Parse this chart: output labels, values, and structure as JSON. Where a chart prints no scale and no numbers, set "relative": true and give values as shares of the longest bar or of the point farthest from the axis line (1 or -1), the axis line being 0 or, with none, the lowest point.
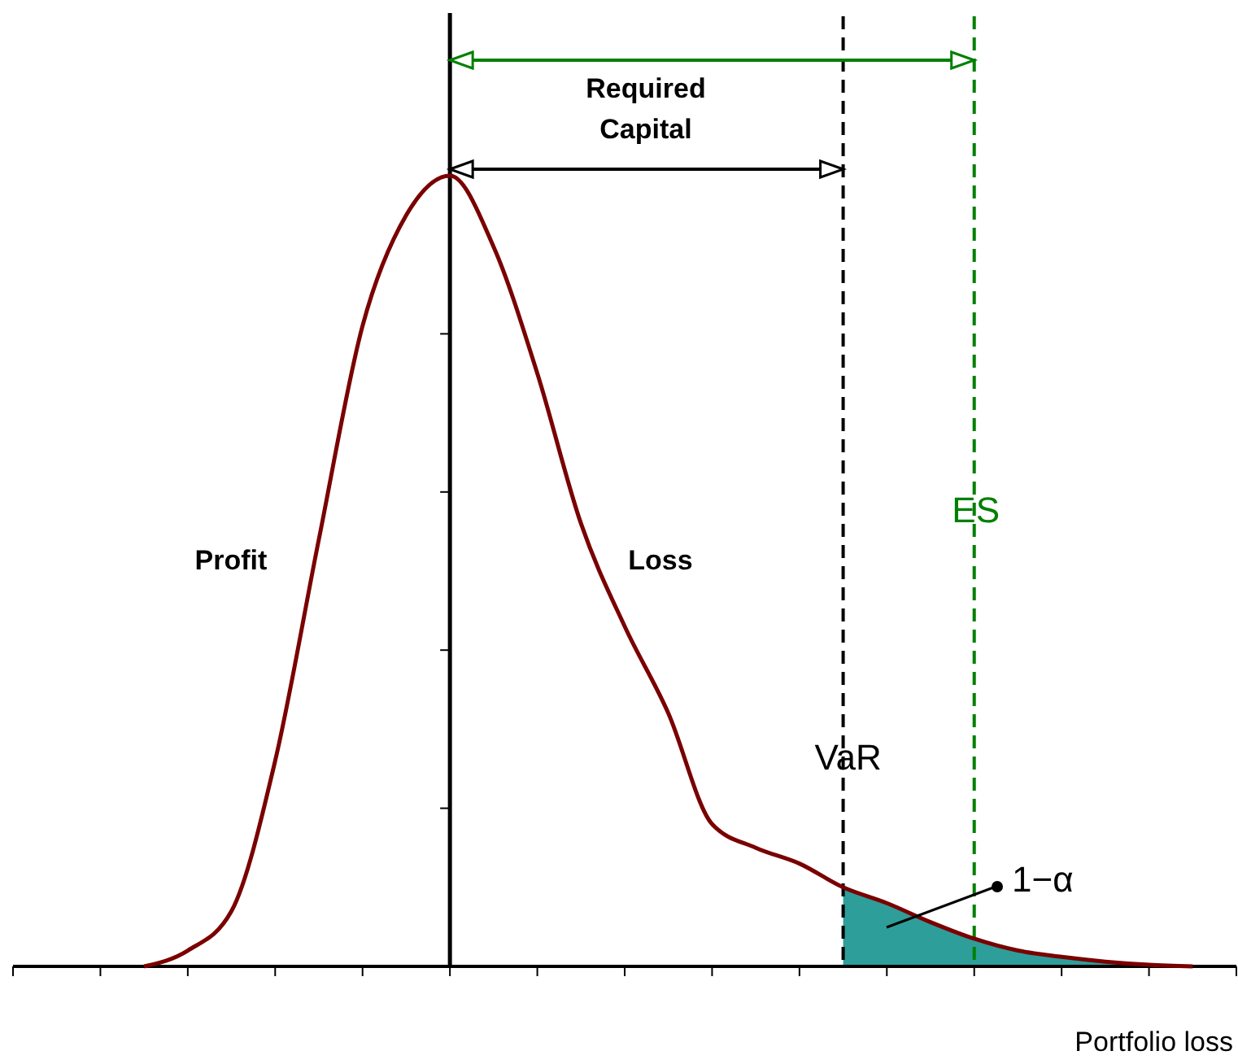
{
  "chart_data": {
    "type": "line",
    "relative": true,
    "xlabel": "Portfolio loss",
    "categories": [
      null,
      null,
      null,
      null,
      null,
      null,
      null,
      null,
      null,
      null,
      null,
      null,
      null,
      null,
      null,
      null,
      null,
      null,
      null,
      null,
      null,
      null,
      null,
      null,
      null,
      null,
      null,
      null,
      null
    ],
    "series": [
      {
        "color": "#7a0000",
        "values": [
          null,
          null,
          null,
          0,
          0.02,
          0.07,
          0.26,
          0.54,
          0.81,
          0.95,
          1,
          0.91,
          0.75,
          0.56,
          0.43,
          0.32,
          0.18,
          0.15,
          0.13,
          0.1,
          0.08,
          0.056,
          0.035,
          0.02,
          0.012,
          0.006,
          0.002,
          0,
          null
        ]
      }
    ],
    "annotations": [
      "Required Capital",
      "Profit",
      "Loss",
      "VaR",
      "ES",
      "1−α"
    ],
    "line_style": "solid"
  }
}
